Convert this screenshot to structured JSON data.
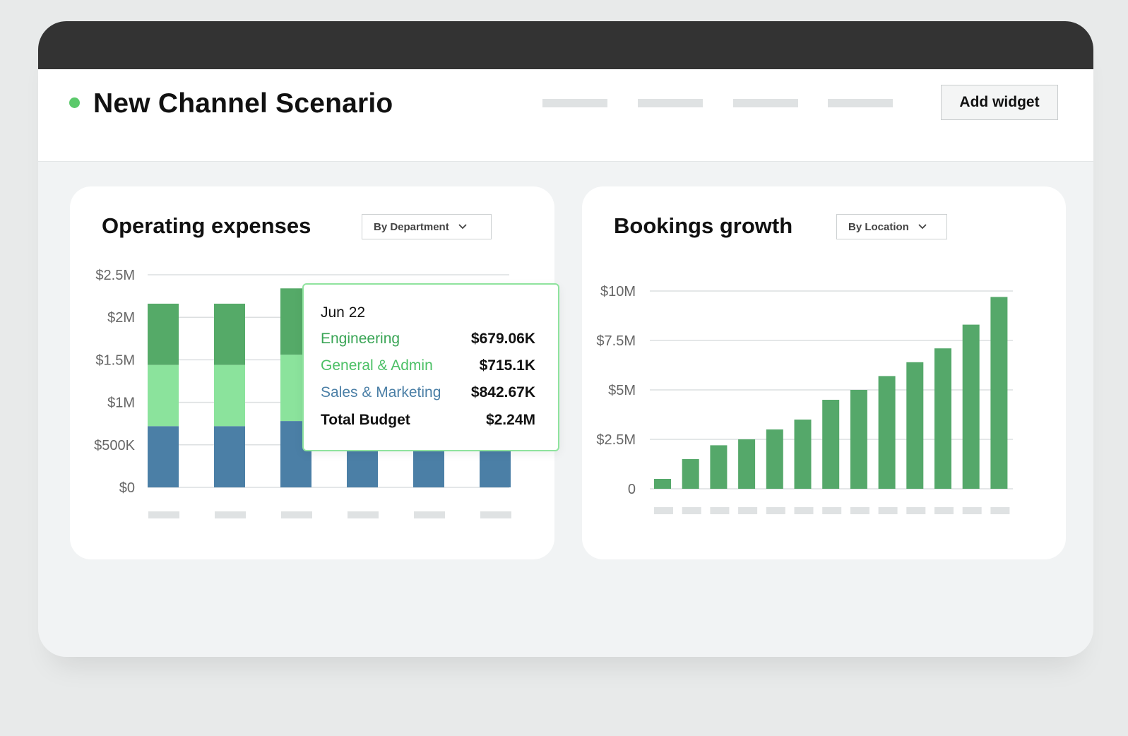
{
  "header": {
    "title": "New Channel Scenario",
    "add_widget_label": "Add widget",
    "status_color": "#5bc96b"
  },
  "opex": {
    "title": "Operating expenses",
    "dropdown": "By Department",
    "tooltip": {
      "date": "Jun 22",
      "rows": [
        {
          "label": "Engineering",
          "value": "$679.06K",
          "color": "#3aa556"
        },
        {
          "label": "General & Admin",
          "value": "$715.1K",
          "color": "#4cc066"
        },
        {
          "label": "Sales & Marketing",
          "value": "$842.67K",
          "color": "#4b7fa6"
        }
      ],
      "total_label": "Total Budget",
      "total_value": "$2.24M"
    }
  },
  "bookings": {
    "title": "Bookings growth",
    "dropdown": "By Location"
  },
  "chart_data": [
    {
      "type": "bar",
      "title": "Operating expenses",
      "stacked": true,
      "yticks": [
        "$0",
        "$500K",
        "$1M",
        "$1.5M",
        "$2M",
        "$2.5M"
      ],
      "ylim": [
        0,
        2500000
      ],
      "series": [
        {
          "color": "#4b7fa6",
          "values": [
            720000,
            720000,
            780000,
            720000,
            720000,
            720000
          ]
        },
        {
          "color": "#8be39c",
          "values": [
            720000,
            720000,
            780000,
            null,
            null,
            null
          ]
        },
        {
          "color": "#55aa68",
          "values": [
            720000,
            720000,
            780000,
            null,
            null,
            null
          ]
        }
      ],
      "x_tick_labels_visible": false,
      "grid": true
    },
    {
      "type": "bar",
      "title": "Bookings growth",
      "yticks": [
        "0",
        "$2.5M",
        "$5M",
        "$7.5M",
        "$10M"
      ],
      "ylim": [
        0,
        10000000
      ],
      "values": [
        500000,
        1500000,
        2200000,
        2500000,
        3000000,
        3500000,
        4500000,
        5000000,
        5700000,
        6400000,
        7100000,
        8300000,
        9700000
      ],
      "color": "#55a86a",
      "x_tick_labels_visible": false,
      "grid": true
    }
  ]
}
